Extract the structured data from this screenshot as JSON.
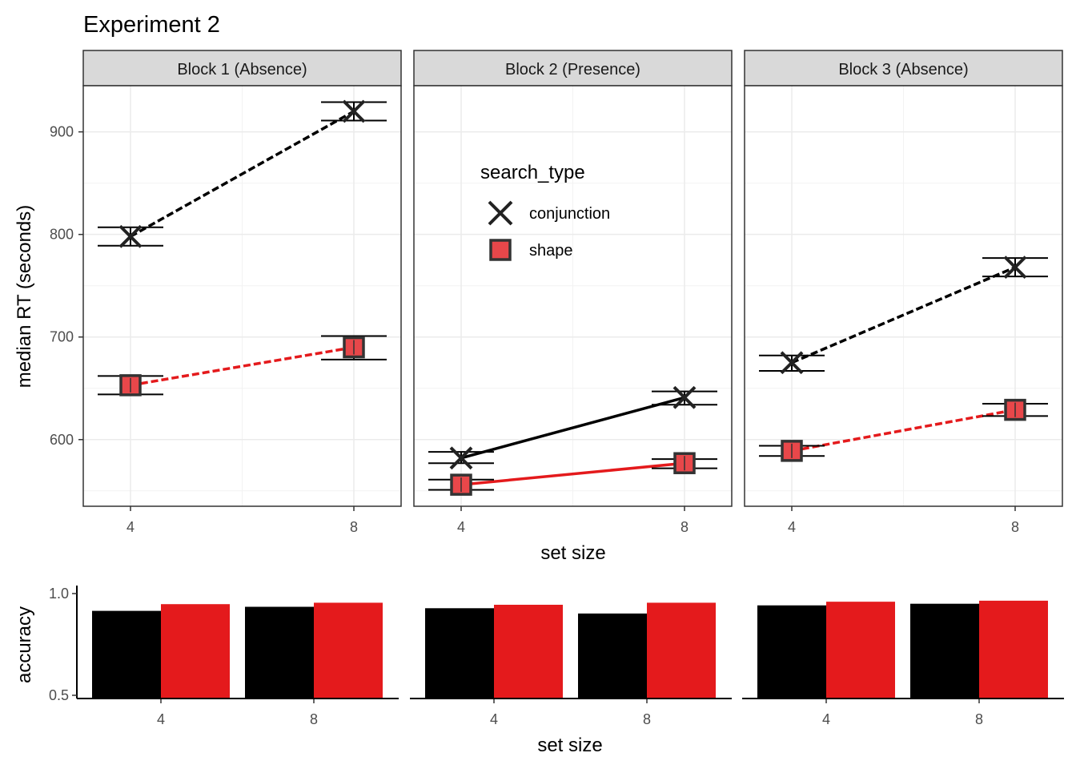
{
  "chart_data": [
    {
      "type": "line",
      "title": "Experiment 2",
      "xlabel": "set size",
      "ylabel": "median RT (seconds)",
      "x": [
        4,
        8
      ],
      "ylim": [
        535,
        945
      ],
      "y_ticks": [
        600,
        700,
        800,
        900
      ],
      "grid": true,
      "legend": {
        "title": "search_type",
        "placement": "inside second panel, top-left",
        "entries": [
          {
            "label": "conjunction",
            "shape": "x-cross",
            "color": "#000000"
          },
          {
            "label": "shape",
            "shape": "square",
            "color": "#e41a1c"
          }
        ]
      },
      "panels": [
        {
          "label": "Block 1 (Absence)",
          "series": [
            {
              "name": "conjunction",
              "line": "dashed",
              "values": [
                798,
                920
              ],
              "error_low": [
                789,
                911
              ],
              "error_high": [
                807,
                929
              ]
            },
            {
              "name": "shape",
              "line": "dashed",
              "values": [
                653,
                690
              ],
              "error_low": [
                644,
                678
              ],
              "error_high": [
                662,
                701
              ]
            }
          ]
        },
        {
          "label": "Block 2 (Presence)",
          "series": [
            {
              "name": "conjunction",
              "line": "solid",
              "values": [
                582,
                641
              ],
              "error_low": [
                577,
                634
              ],
              "error_high": [
                588,
                647
              ]
            },
            {
              "name": "shape",
              "line": "solid",
              "values": [
                556,
                577
              ],
              "error_low": [
                551,
                572
              ],
              "error_high": [
                561,
                581
              ]
            }
          ]
        },
        {
          "label": "Block 3 (Absence)",
          "series": [
            {
              "name": "conjunction",
              "line": "dashed",
              "values": [
                675,
                768
              ],
              "error_low": [
                667,
                759
              ],
              "error_high": [
                682,
                777
              ]
            },
            {
              "name": "shape",
              "line": "dashed",
              "values": [
                589,
                629
              ],
              "error_low": [
                584,
                623
              ],
              "error_high": [
                594,
                635
              ]
            }
          ]
        }
      ]
    },
    {
      "type": "bar",
      "xlabel": "set size",
      "ylabel": "accuracy",
      "categories": [
        "4",
        "8"
      ],
      "ylim": [
        0.5,
        1.0
      ],
      "y_ticks": [
        0.5,
        1.0
      ],
      "y_tick_labels": [
        "0.5",
        "1.0"
      ],
      "colors": {
        "conjunction": "#000000",
        "shape": "#e41a1c"
      },
      "panels": [
        {
          "series": [
            {
              "name": "conjunction",
              "values": [
                0.915,
                0.935
              ]
            },
            {
              "name": "shape",
              "values": [
                0.948,
                0.955
              ]
            }
          ]
        },
        {
          "series": [
            {
              "name": "conjunction",
              "values": [
                0.928,
                0.902
              ]
            },
            {
              "name": "shape",
              "values": [
                0.945,
                0.955
              ]
            }
          ]
        },
        {
          "series": [
            {
              "name": "conjunction",
              "values": [
                0.942,
                0.95
              ]
            },
            {
              "name": "shape",
              "values": [
                0.96,
                0.965
              ]
            }
          ]
        }
      ]
    }
  ]
}
